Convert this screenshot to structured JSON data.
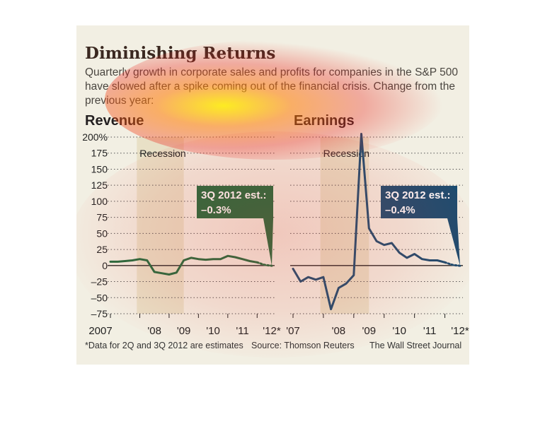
{
  "header": {
    "title": "Diminishing Returns",
    "subtitle": "Quarterly growth in corporate sales and profits for companies in the S&P 500 have slowed after a spike coming out of the financial crisis. Change from the previous year:"
  },
  "footer": {
    "note": "*Data for 2Q and 3Q 2012 are estimates",
    "source": "Source: Thomson Reuters",
    "publisher": "The Wall Street Journal"
  },
  "colors": {
    "revenue": "#1f6b3d",
    "earnings": "#1a4c70",
    "recession": "#e8e0c6"
  },
  "chart_data": [
    {
      "type": "line",
      "title": "Revenue",
      "yticks": [
        "200%",
        "175",
        "150",
        "125",
        "100",
        "75",
        "50",
        "25",
        "0",
        "–25",
        "–50",
        "–75"
      ],
      "ylim": [
        -75,
        200
      ],
      "xticks": [
        "2007",
        "'08",
        "'09",
        "'10",
        "'11",
        "'12*"
      ],
      "recession_label": "Recession",
      "recession_range": [
        2007.9,
        2009.5
      ],
      "callout": {
        "label": "3Q 2012 est.:",
        "value": "–0.3%"
      },
      "series": [
        {
          "x": [
            2007.0,
            2007.25,
            2007.5,
            2007.75,
            2008.0,
            2008.25,
            2008.5,
            2008.75,
            2009.0,
            2009.25,
            2009.5,
            2009.75,
            2010.0,
            2010.25,
            2010.5,
            2010.75,
            2011.0,
            2011.25,
            2011.5,
            2011.75,
            2012.0
          ],
          "values": [
            6,
            6,
            7,
            8,
            10,
            8,
            -10,
            -12,
            -14,
            -11,
            8,
            12,
            10,
            9,
            10,
            10,
            15,
            13,
            10,
            7,
            5
          ]
        },
        {
          "x": [
            2012.0,
            2012.25,
            2012.5
          ],
          "values": [
            5,
            1,
            -0.3
          ],
          "estimate": true
        }
      ]
    },
    {
      "type": "line",
      "title": "Earnings",
      "yticks": [],
      "ylim": [
        -75,
        200
      ],
      "xticks": [
        "'07",
        "'08",
        "'09",
        "'10",
        "'11",
        "'12*"
      ],
      "recession_label": "Recession",
      "recession_range": [
        2007.9,
        2009.5
      ],
      "callout": {
        "label": "3Q 2012 est.:",
        "value": "–0.4%"
      },
      "series": [
        {
          "x": [
            2007.0,
            2007.25,
            2007.5,
            2007.75,
            2008.0,
            2008.25,
            2008.5,
            2008.75,
            2009.0,
            2009.25,
            2009.5,
            2009.75,
            2010.0,
            2010.25,
            2010.5,
            2010.75,
            2011.0,
            2011.25,
            2011.5,
            2011.75,
            2012.0
          ],
          "values": [
            -5,
            -25,
            -18,
            -22,
            -18,
            -68,
            -35,
            -28,
            -15,
            205,
            58,
            38,
            32,
            35,
            20,
            12,
            18,
            10,
            8,
            8,
            5
          ]
        },
        {
          "x": [
            2012.0,
            2012.25,
            2012.5
          ],
          "values": [
            5,
            1,
            -0.4
          ],
          "estimate": true
        }
      ]
    }
  ]
}
